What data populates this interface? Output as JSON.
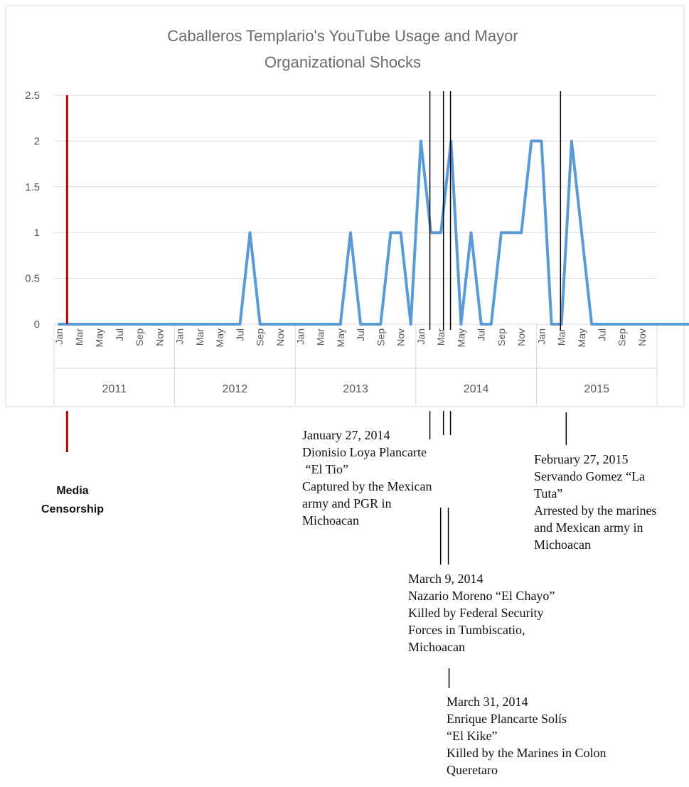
{
  "chart_data": {
    "type": "line",
    "title": [
      "Caballeros Templario's YouTube Usage and Mayor",
      "Organizational Shocks"
    ],
    "xlabel": "",
    "ylabel": "",
    "ylim": [
      0,
      2.5
    ],
    "yticks": [
      "2.5",
      "2",
      "1.5",
      "1",
      "0.5",
      "0"
    ],
    "years": [
      "2011",
      "2012",
      "2013",
      "2014",
      "2015"
    ],
    "month_labels": [
      "Jan",
      "",
      "Mar",
      "",
      "May",
      "",
      "Jul",
      "",
      "Sep",
      "",
      "Nov",
      ""
    ],
    "series_color": "#5b9bd5",
    "grid": true,
    "values": [
      0,
      0,
      0,
      0,
      0,
      0,
      0,
      0,
      0,
      0,
      0,
      0,
      0,
      0,
      0,
      0,
      0,
      0,
      0,
      1,
      0,
      0,
      0,
      0,
      0,
      0,
      0,
      0,
      0,
      1,
      0,
      0,
      0,
      1,
      1,
      0,
      2,
      1,
      1,
      2,
      0,
      1,
      0,
      0,
      1,
      1,
      1,
      2,
      2,
      0,
      0,
      2,
      1,
      0,
      0,
      0,
      0,
      0,
      0,
      0,
      0,
      0,
      0,
      0,
      0,
      0,
      0,
      0
    ]
  },
  "events": [
    {
      "month_index": 36.9,
      "color": "#000000",
      "label": [
        "January 27, 2014",
        "Dionisio Loya Plancarte",
        " “El Tio”",
        "Captured by the Mexican",
        "army and PGR in",
        "Michoacan"
      ]
    },
    {
      "month_index": 38.25,
      "color": "#000000",
      "label": [
        "March 9, 2014",
        "Nazario Moreno “El Chayo”",
        "Killed by Federal Security",
        "Forces in Tumbiscatio,",
        "Michoacan"
      ]
    },
    {
      "month_index": 38.95,
      "color": "#000000",
      "label": [
        "March 31, 2014",
        "Enrique Plancarte Solís",
        "“El Kike”",
        "Killed by the Marines in Colon",
        "Queretaro"
      ]
    },
    {
      "month_index": 49.9,
      "color": "#000000",
      "label": [
        "February 27, 2015",
        "Servando Gomez “La",
        "Tuta”",
        "Arrested by the marines",
        "and Mexican army in",
        "Michoacan"
      ]
    }
  ],
  "censorship": {
    "month_index": 0.8,
    "color": "#c00000",
    "label": [
      "Media",
      "Censorship"
    ]
  }
}
